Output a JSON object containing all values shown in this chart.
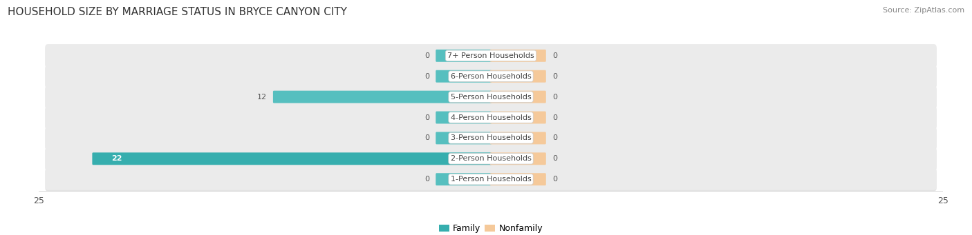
{
  "title": "HOUSEHOLD SIZE BY MARRIAGE STATUS IN BRYCE CANYON CITY",
  "source": "Source: ZipAtlas.com",
  "categories": [
    "7+ Person Households",
    "6-Person Households",
    "5-Person Households",
    "4-Person Households",
    "3-Person Households",
    "2-Person Households",
    "1-Person Households"
  ],
  "family_values": [
    0,
    0,
    12,
    0,
    0,
    22,
    0
  ],
  "nonfamily_values": [
    0,
    0,
    0,
    0,
    0,
    0,
    0
  ],
  "family_color": "#56BFBF",
  "family_color_large": "#36AEAE",
  "nonfamily_color": "#F5C99A",
  "row_bg_color": "#EBEBEB",
  "row_bg_shadow": "#D8D8D8",
  "xlim": [
    -25,
    25
  ],
  "xtick_labels": [
    "25",
    "25"
  ],
  "xtick_vals": [
    -25,
    25
  ],
  "stub_family": 3.0,
  "stub_nonfamily": 3.0,
  "title_fontsize": 11,
  "source_fontsize": 8,
  "label_fontsize": 8,
  "value_fontsize": 8,
  "tick_fontsize": 9,
  "legend_fontsize": 9
}
